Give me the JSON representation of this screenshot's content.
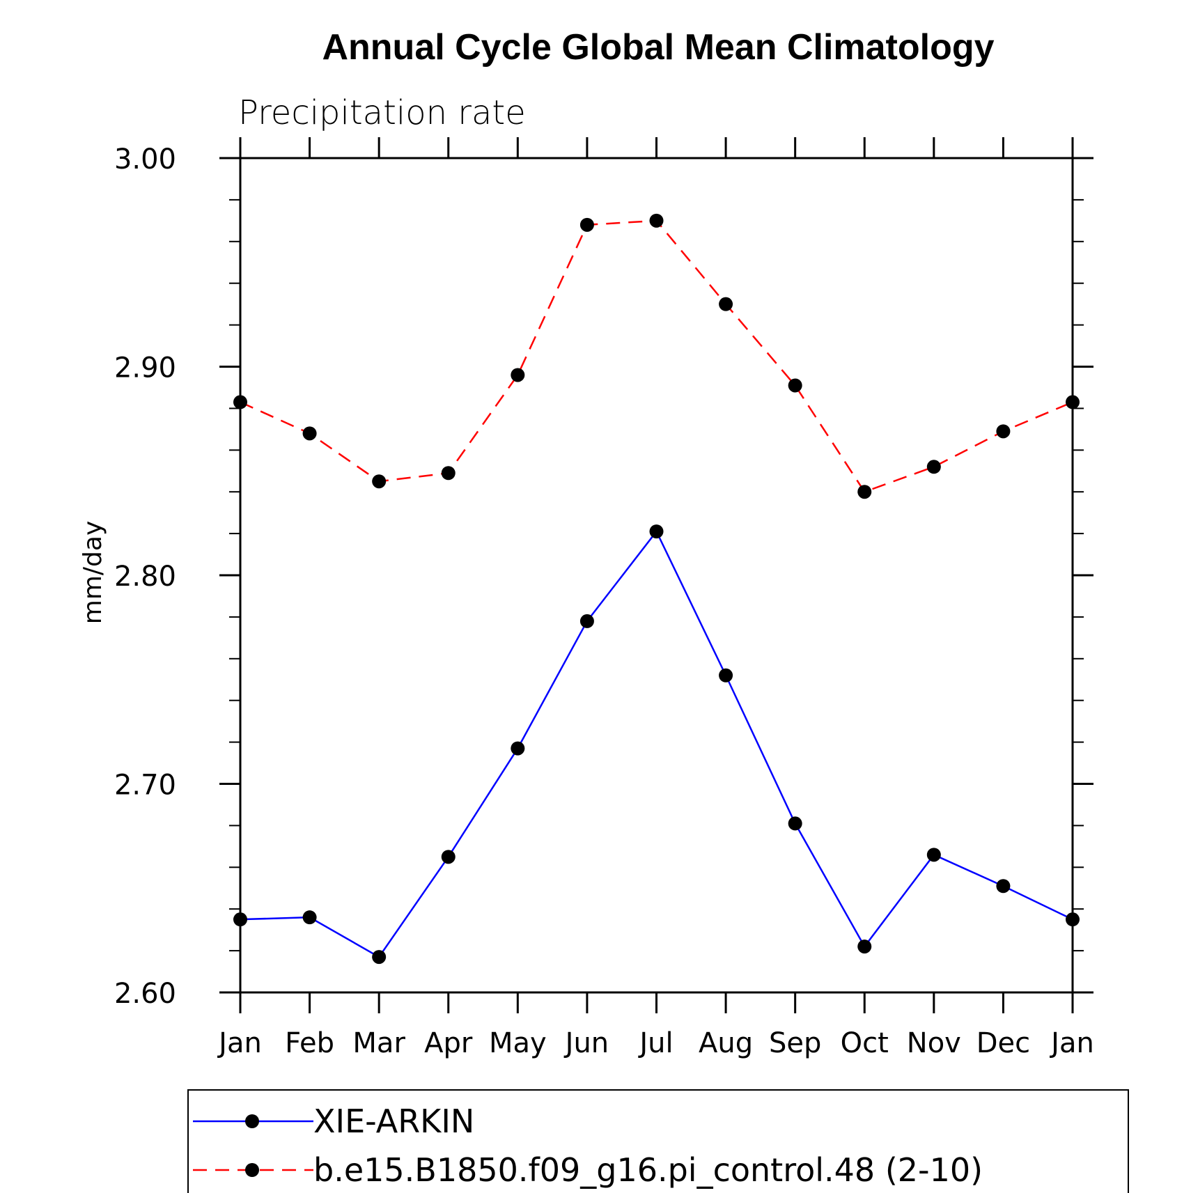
{
  "chart_data": {
    "type": "line",
    "title": "Annual Cycle Global Mean Climatology",
    "subtitle": "Precipitation rate",
    "xlabel": "",
    "ylabel": "mm/day",
    "categories": [
      "Jan",
      "Feb",
      "Mar",
      "Apr",
      "May",
      "Jun",
      "Jul",
      "Aug",
      "Sep",
      "Oct",
      "Nov",
      "Dec",
      "Jan"
    ],
    "ylim": [
      2.6,
      3.0
    ],
    "yticks": [
      "2.60",
      "2.70",
      "2.80",
      "2.90",
      "3.00"
    ],
    "ytick_values": [
      2.6,
      2.7,
      2.8,
      2.9,
      3.0
    ],
    "y_minor_step": 0.02,
    "grid": false,
    "legend_position": "bottom",
    "series": [
      {
        "name": "XIE-ARKIN",
        "color": "#0000ff",
        "dash": "solid",
        "values": [
          2.635,
          2.636,
          2.617,
          2.665,
          2.717,
          2.778,
          2.821,
          2.752,
          2.681,
          2.622,
          2.666,
          2.651,
          2.635
        ]
      },
      {
        "name": "b.e15.B1850.f09_g16.pi_control.48 (2-10)",
        "color": "#ff0000",
        "dash": "dashed",
        "values": [
          2.883,
          2.868,
          2.845,
          2.849,
          2.896,
          2.968,
          2.97,
          2.93,
          2.891,
          2.84,
          2.852,
          2.869,
          2.883
        ]
      }
    ]
  }
}
